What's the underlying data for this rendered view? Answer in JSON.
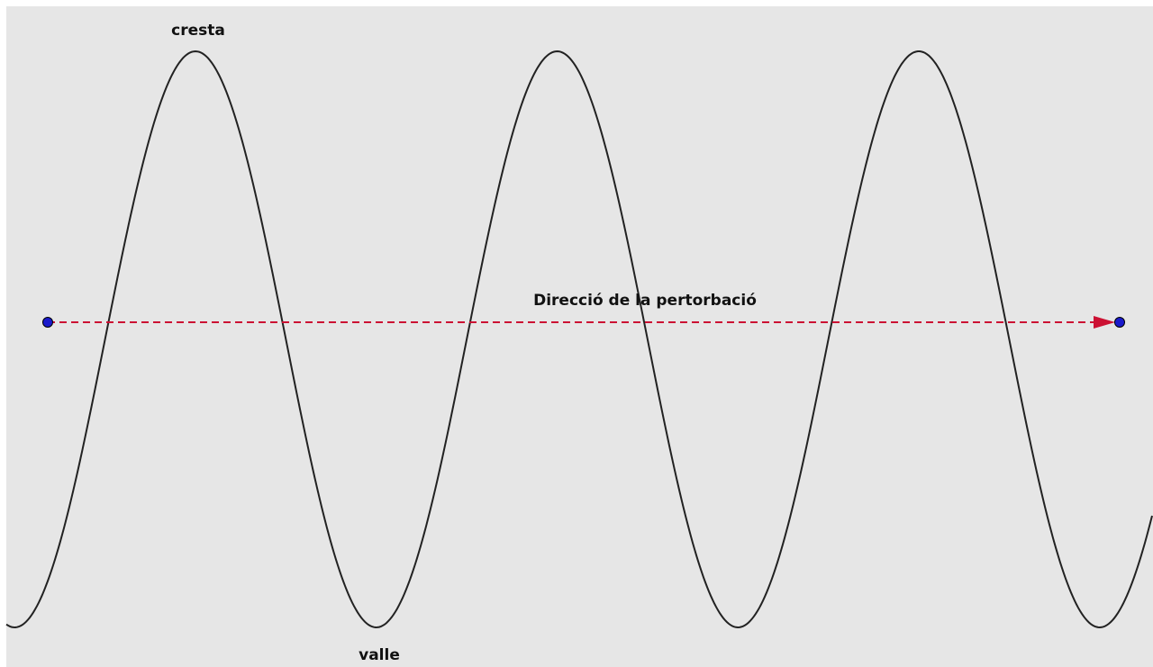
{
  "labels": {
    "crest": "cresta",
    "trough": "valle",
    "direction": "Direcció de la pertorbació"
  }
}
